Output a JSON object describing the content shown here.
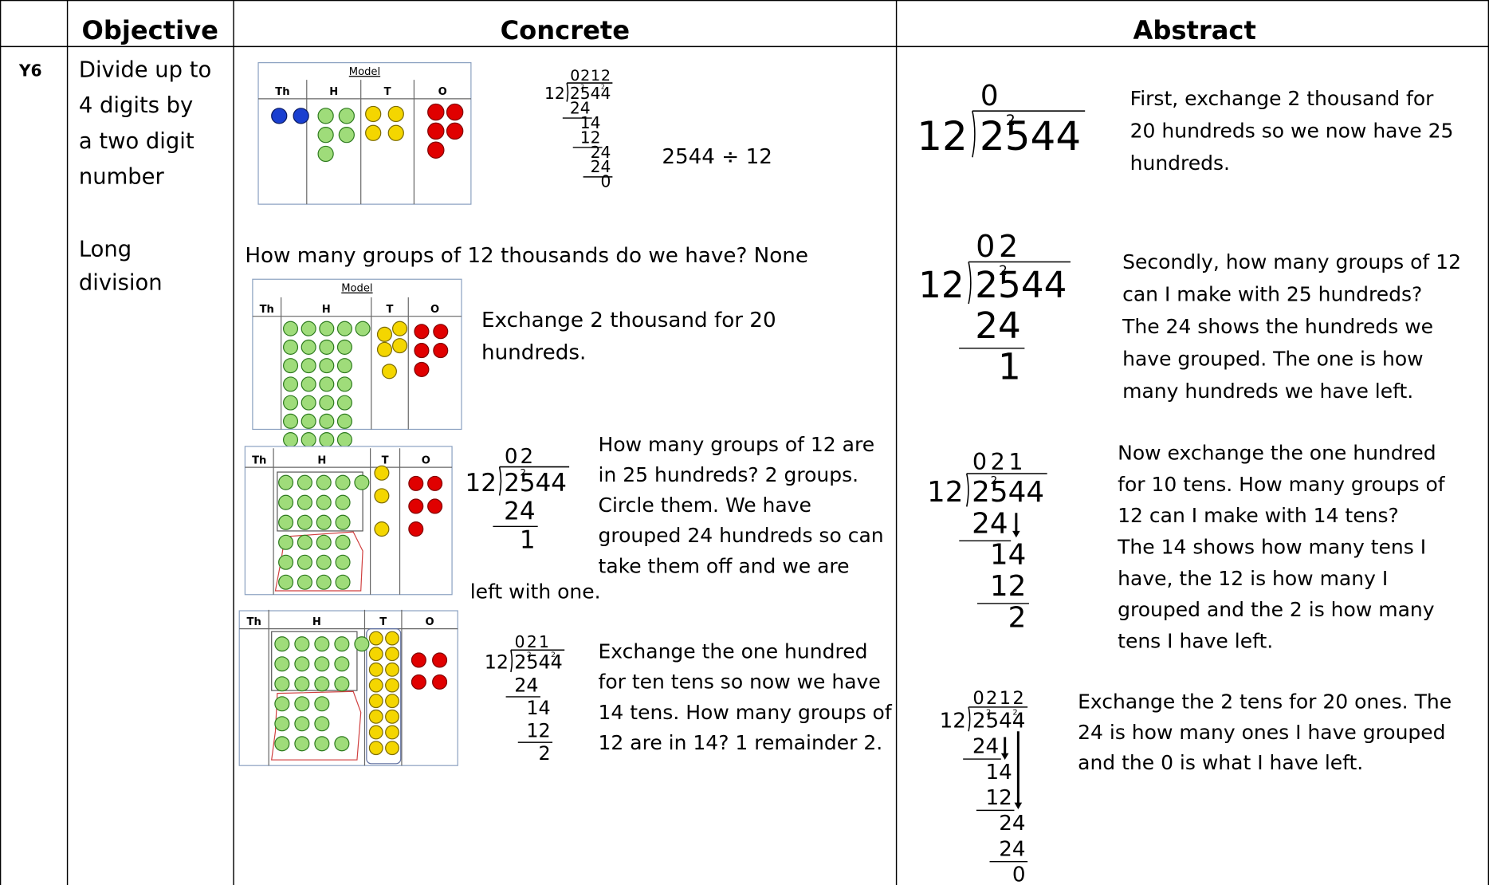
{
  "header": {
    "objective": "Objective",
    "concrete": "Concrete",
    "abstract": "Abstract"
  },
  "row": {
    "year": "Y6",
    "objective": [
      "Divide up to",
      "4 digits by",
      "a two digit",
      "number"
    ],
    "method": [
      "Long",
      "division"
    ]
  },
  "place_value": {
    "title": "Model",
    "columns": [
      "Th",
      "H",
      "T",
      "O"
    ]
  },
  "concrete": {
    "expression": "2544 ÷ 12",
    "question": "How many groups of 12 thousands do we have? None",
    "step_1": [
      "Exchange 2 thousand for 20",
      "hundreds."
    ],
    "step_2": [
      "How many groups of 12 are",
      "in 25 hundreds? 2 groups.",
      "Circle them. We have",
      "grouped 24 hundreds so can",
      "take them off and we are"
    ],
    "step_2_end": "left with one.",
    "step_3": [
      "Exchange the one hundred",
      "for ten tens so now we have",
      "14 tens. How many groups of",
      "12 are in 14? 1 remainder 2."
    ]
  },
  "abstract": {
    "step_1": [
      "First, exchange 2 thousand for",
      "20 hundreds so we now have 25",
      "hundreds."
    ],
    "step_2": [
      "Secondly, how many groups of 12",
      "can I make with 25 hundreds?",
      "The 24 shows the hundreds we",
      "have grouped. The one is how",
      "many hundreds we have left."
    ],
    "step_3": [
      "Now exchange the one hundred",
      "for 10 tens. How many groups of",
      "12 can I make with 14 tens?",
      "The 14 shows how many tens I",
      "have, the 12 is how many I",
      "grouped and the 2 is how many",
      "tens I have left."
    ],
    "step_4": [
      "Exchange the 2 tens for 20 ones. The",
      "24 is how many ones I have grouped",
      "and the 0 is what I have left."
    ]
  },
  "divisions": {
    "c1": {
      "quotient": "0212",
      "divisor": "12",
      "dividend": "2544",
      "carries": [
        "2",
        "2"
      ],
      "working": [
        "24",
        "14",
        "12",
        "24",
        "24",
        "0"
      ]
    },
    "c2": {
      "quotient": "02",
      "divisor": "12",
      "dividend": "2544",
      "carries": [
        "2"
      ],
      "working": [
        "24",
        "1"
      ]
    },
    "c3": {
      "quotient": "021",
      "divisor": "12",
      "dividend": "2544",
      "carries": [
        "2",
        "2"
      ],
      "working": [
        "24",
        "14",
        "12",
        "2"
      ]
    },
    "a1": {
      "quotient": "0",
      "divisor": "12",
      "dividend": "2544",
      "carries": [
        "2"
      ],
      "working": []
    },
    "a2": {
      "quotient": "02",
      "divisor": "12",
      "dividend": "2544",
      "carries": [
        "2"
      ],
      "working": [
        "24",
        "1"
      ]
    },
    "a3": {
      "quotient": "021",
      "divisor": "12",
      "dividend": "2544",
      "carries": [
        "2"
      ],
      "working": [
        "24",
        "14",
        "12",
        "2"
      ]
    },
    "a4": {
      "quotient": "0212",
      "divisor": "12",
      "dividend": "2544",
      "carries": [
        "2",
        "2"
      ],
      "working": [
        "24",
        "14",
        "12",
        "24",
        "24",
        "0"
      ]
    }
  }
}
